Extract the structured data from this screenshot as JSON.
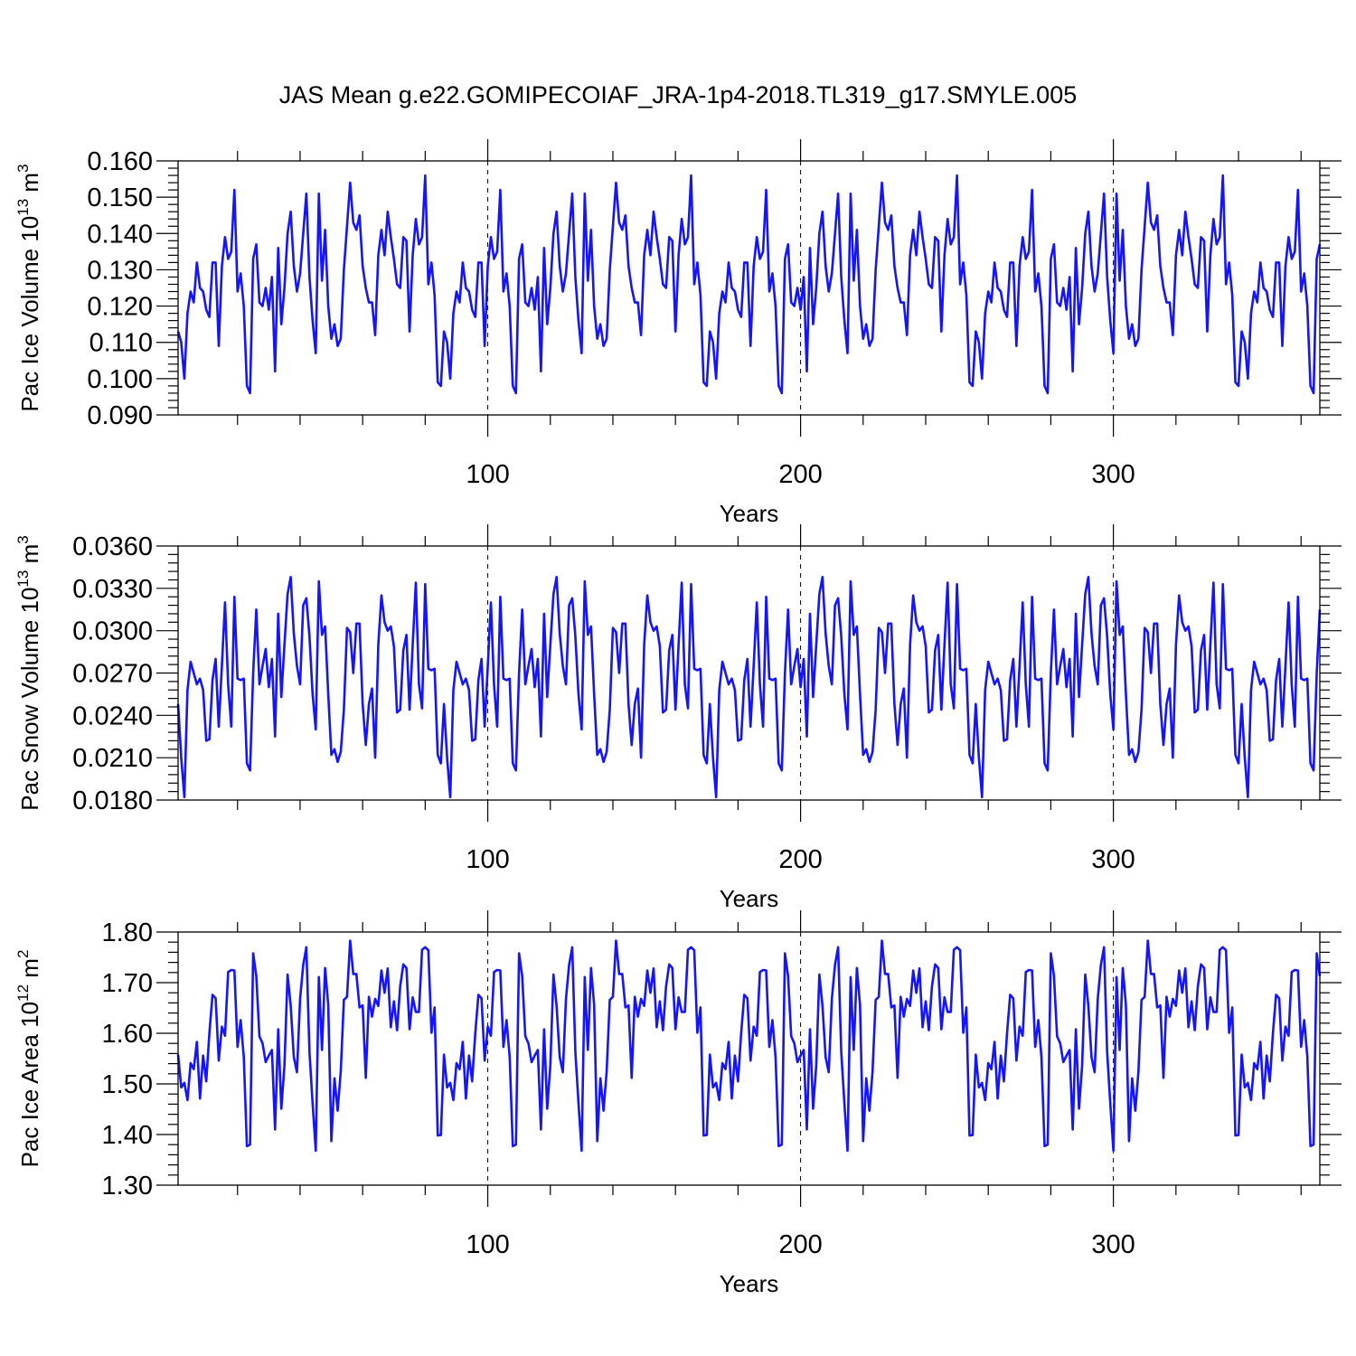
{
  "figure": {
    "title": "JAS Mean g.e22.GOMIPECOIAF_JRA-1p4-2018.TL319_g17.SMYLE.005"
  },
  "colors": {
    "series": "#1414ff",
    "axes": "#000000"
  },
  "chart_data": [
    {
      "type": "line",
      "ylabel": "Pac Ice Volume 10",
      "ylabel_exp": "13",
      "ylabel_unit": " m",
      "ylabel_unit_exp": "3",
      "xlabel": "Years",
      "xlim": [
        1,
        366
      ],
      "ylim": [
        0.09,
        0.16
      ],
      "yticks": [
        0.09,
        0.1,
        0.11,
        0.12,
        0.13,
        0.14,
        0.15,
        0.16
      ],
      "ytick_labels": [
        "0.090",
        "0.100",
        "0.110",
        "0.120",
        "0.130",
        "0.140",
        "0.150",
        "0.160"
      ],
      "xticks": [
        100,
        200,
        300
      ],
      "xtick_labels": [
        "100",
        "200",
        "300"
      ],
      "grid_x": [
        100,
        200,
        300
      ],
      "base": [
        0.113,
        0.11,
        0.1,
        0.118,
        0.124,
        0.121,
        0.132,
        0.125,
        0.124,
        0.119,
        0.117,
        0.132,
        0.132,
        0.109,
        0.131,
        0.139,
        0.133,
        0.135,
        0.152,
        0.124,
        0.129,
        0.12,
        0.098,
        0.096,
        0.133,
        0.137,
        0.121,
        0.12,
        0.125,
        0.119,
        0.128,
        0.102,
        0.136,
        0.115,
        0.125,
        0.14,
        0.146,
        0.131,
        0.124,
        0.129,
        0.14,
        0.151,
        0.128,
        0.116,
        0.107,
        0.151,
        0.127,
        0.141,
        0.12,
        0.111,
        0.115,
        0.109,
        0.111,
        0.13,
        0.142,
        0.154,
        0.143,
        0.141,
        0.145,
        0.131,
        0.125,
        0.121,
        0.121,
        0.112,
        0.134,
        0.141,
        0.134,
        0.146,
        0.139,
        0.133,
        0.126,
        0.125,
        0.139,
        0.138,
        0.113,
        0.134,
        0.144,
        0.137,
        0.139,
        0.156,
        0.126,
        0.132,
        0.123,
        0.099,
        0.098
      ]
    },
    {
      "type": "line",
      "ylabel": "Pac Snow Volume 10",
      "ylabel_exp": "13",
      "ylabel_unit": " m",
      "ylabel_unit_exp": "3",
      "xlabel": "Years",
      "xlim": [
        1,
        366
      ],
      "ylim": [
        0.018,
        0.036
      ],
      "yticks": [
        0.018,
        0.021,
        0.024,
        0.027,
        0.03,
        0.033,
        0.036
      ],
      "ytick_labels": [
        "0.0180",
        "0.0210",
        "0.0240",
        "0.0270",
        "0.0300",
        "0.0330",
        "0.0360"
      ],
      "xticks": [
        100,
        200,
        300
      ],
      "xtick_labels": [
        "100",
        "200",
        "300"
      ],
      "grid_x": [
        100,
        200,
        300
      ],
      "base": [
        0.0248,
        0.021,
        0.0182,
        0.0258,
        0.0278,
        0.027,
        0.0262,
        0.0266,
        0.0258,
        0.0222,
        0.0223,
        0.0265,
        0.028,
        0.0232,
        0.0275,
        0.032,
        0.0262,
        0.0232,
        0.0324,
        0.0266,
        0.0265,
        0.0266,
        0.0206,
        0.0201,
        0.027,
        0.0315,
        0.0262,
        0.0275,
        0.0287,
        0.026,
        0.028,
        0.0225,
        0.0312,
        0.0253,
        0.029,
        0.0326,
        0.0338,
        0.0298,
        0.0275,
        0.0262,
        0.0318,
        0.0323,
        0.0296,
        0.0255,
        0.023,
        0.0335,
        0.0297,
        0.0303,
        0.0255,
        0.0212,
        0.0216,
        0.0207,
        0.0214,
        0.0244,
        0.0302,
        0.0299,
        0.027,
        0.0305,
        0.0305,
        0.0248,
        0.0219,
        0.0248,
        0.0259,
        0.021,
        0.029,
        0.0325,
        0.0306,
        0.03,
        0.0303,
        0.0289,
        0.0242,
        0.0244,
        0.0286,
        0.0297,
        0.0244,
        0.029,
        0.0334,
        0.0262,
        0.0245,
        0.0333,
        0.0273,
        0.0272,
        0.0273,
        0.0212,
        0.0206
      ]
    },
    {
      "type": "line",
      "ylabel": "Pac Ice Area 10",
      "ylabel_exp": "12",
      "ylabel_unit": " m",
      "ylabel_unit_exp": "2",
      "xlabel": "Years",
      "xlim": [
        1,
        366
      ],
      "ylim": [
        1.3,
        1.8
      ],
      "yticks": [
        1.3,
        1.4,
        1.5,
        1.6,
        1.7,
        1.8
      ],
      "ytick_labels": [
        "1.30",
        "1.40",
        "1.50",
        "1.60",
        "1.70",
        "1.80"
      ],
      "xticks": [
        100,
        200,
        300
      ],
      "xtick_labels": [
        "100",
        "200",
        "300"
      ],
      "grid_x": [
        100,
        200,
        300
      ],
      "base": [
        1.558,
        1.493,
        1.502,
        1.468,
        1.541,
        1.529,
        1.583,
        1.471,
        1.556,
        1.505,
        1.6,
        1.676,
        1.669,
        1.546,
        1.613,
        1.595,
        1.721,
        1.725,
        1.724,
        1.573,
        1.626,
        1.553,
        1.377,
        1.38,
        1.758,
        1.713,
        1.594,
        1.58,
        1.543,
        1.556,
        1.567,
        1.41,
        1.608,
        1.451,
        1.536,
        1.716,
        1.654,
        1.553,
        1.523,
        1.668,
        1.735,
        1.77,
        1.563,
        1.462,
        1.368,
        1.711,
        1.567,
        1.729,
        1.656,
        1.387,
        1.511,
        1.447,
        1.524,
        1.666,
        1.672,
        1.783,
        1.717,
        1.717,
        1.651,
        1.655,
        1.512,
        1.672,
        1.633,
        1.668,
        1.654,
        1.724,
        1.68,
        1.728,
        1.612,
        1.663,
        1.606,
        1.693,
        1.736,
        1.729,
        1.608,
        1.671,
        1.642,
        1.642,
        1.765,
        1.77,
        1.764,
        1.601,
        1.651,
        1.398,
        1.399
      ]
    }
  ]
}
